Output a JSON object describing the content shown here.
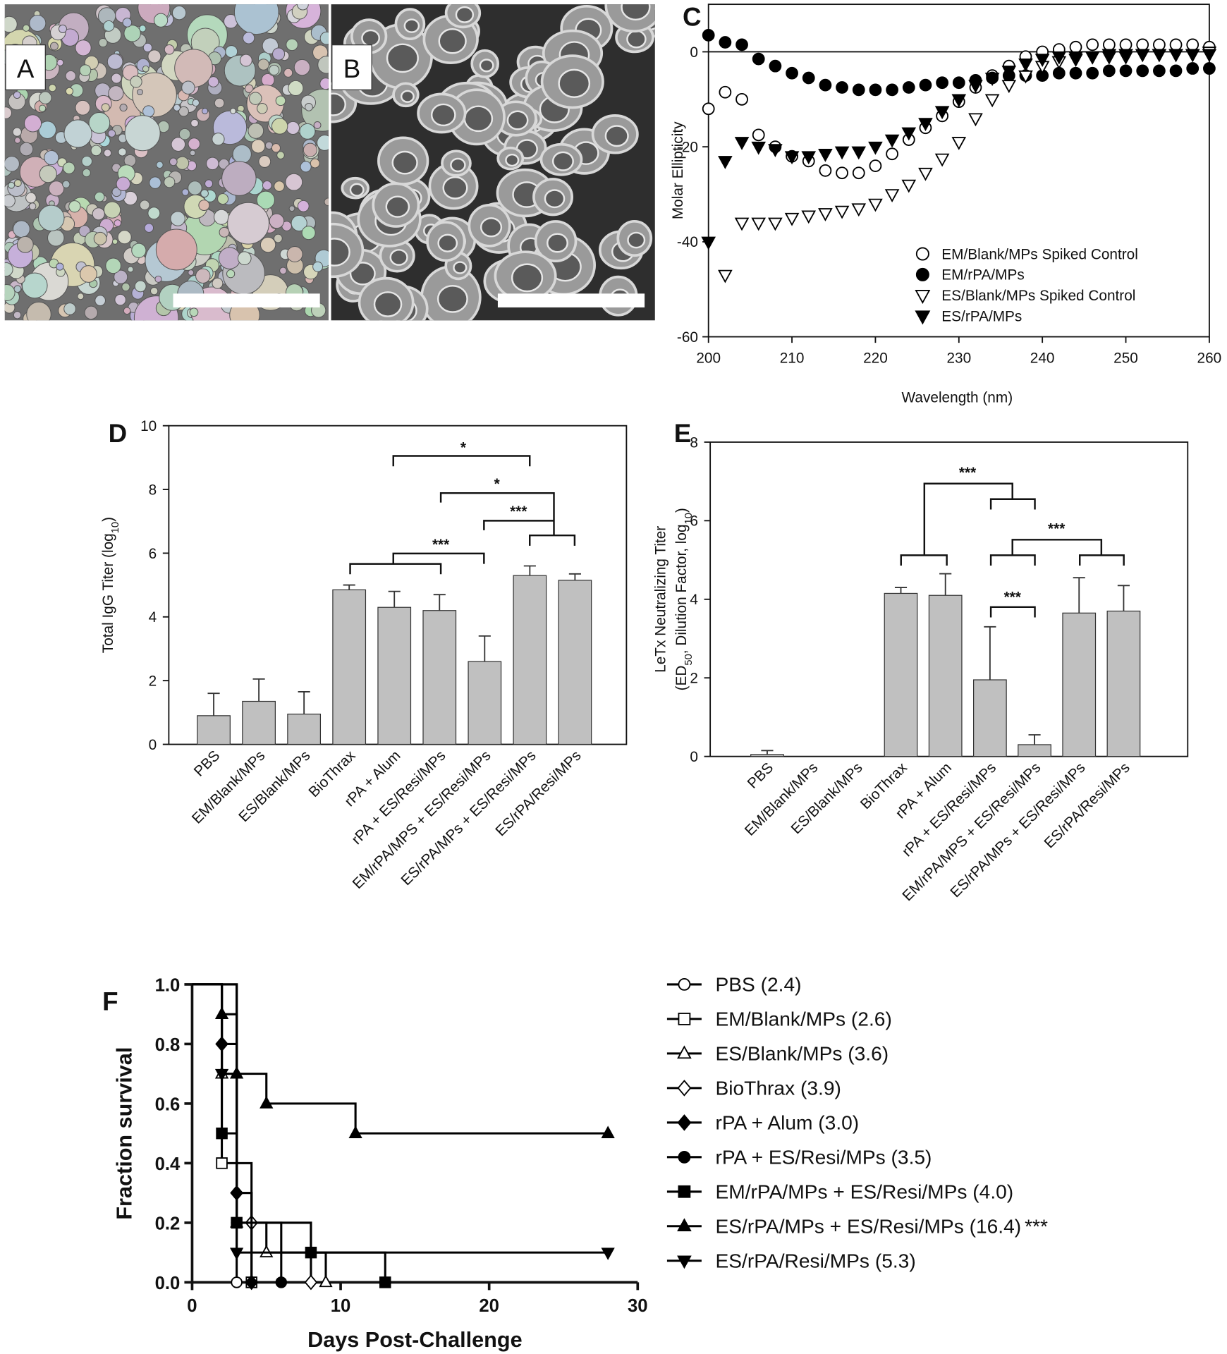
{
  "images": [
    {
      "label": "A"
    },
    {
      "label": "B"
    }
  ],
  "chart_data": [
    {
      "label": "C",
      "type": "scatter",
      "xlabel": "Wavelength (nm)",
      "ylabel": "Molar Ellipticity",
      "x": [
        200,
        202,
        204,
        206,
        208,
        210,
        212,
        214,
        216,
        218,
        220,
        222,
        224,
        226,
        228,
        230,
        232,
        234,
        236,
        238,
        240,
        242,
        244,
        246,
        248,
        250,
        252,
        254,
        256,
        258,
        260
      ],
      "xlim": [
        200,
        260
      ],
      "xticks": [
        200,
        210,
        220,
        230,
        240,
        250,
        260
      ],
      "ylim": [
        -60,
        10
      ],
      "yticks": [
        -60,
        -40,
        -20,
        0
      ],
      "zero_line": true,
      "series": [
        {
          "name": "EM/Blank/MPs Spiked Control",
          "color": "#000000",
          "marker": "circle-open",
          "values": [
            -12,
            -8.5,
            -10,
            -17.5,
            -20,
            -22,
            -23,
            -25,
            -25.5,
            -25.5,
            -24,
            -21.5,
            -18.5,
            -16,
            -13.5,
            -10.5,
            -7.5,
            -5,
            -3,
            -1,
            0,
            0.5,
            1,
            1.5,
            1.5,
            1.5,
            1.5,
            1.5,
            1.5,
            1.5,
            1
          ]
        },
        {
          "name": "EM/rPA/MPs",
          "color": "#000000",
          "marker": "circle-filled",
          "values": [
            3.5,
            2,
            1.5,
            -1.5,
            -3,
            -4.5,
            -5.5,
            -7,
            -7.5,
            -8,
            -8,
            -8,
            -7.5,
            -7,
            -6.5,
            -6.5,
            -6,
            -5.5,
            -5,
            -5,
            -5,
            -4.5,
            -4.5,
            -4.5,
            -4,
            -4,
            -4,
            -4,
            -4,
            -3.5,
            -3.5
          ]
        },
        {
          "name": "ES/Blank/MPs Spiked Control",
          "color": "#000000",
          "marker": "triangle-down-open",
          "values": [
            null,
            -47,
            -36,
            -36,
            -36,
            -35,
            -34.5,
            -34,
            -33.5,
            -33,
            -32,
            -30,
            -28,
            -25.5,
            -22.5,
            -19,
            -14,
            -10,
            -7,
            -5,
            -3,
            -2,
            -1.5,
            -1,
            -1,
            -1,
            -0.5,
            -0.5,
            -0.5,
            -0.5,
            0
          ]
        },
        {
          "name": "ES/rPA/MPs",
          "color": "#000000",
          "marker": "triangle-down-filled",
          "values": [
            -40,
            -23,
            -19,
            -20,
            -20.5,
            -22,
            -22,
            -21.5,
            -21,
            -21,
            -20,
            -18.5,
            -17,
            -15,
            -12.5,
            -10,
            -7,
            -5.5,
            -4,
            -2.5,
            -1.5,
            -1,
            -1,
            -1,
            -0.5,
            -0.5,
            -0.5,
            -0.5,
            -0.5,
            -0.5,
            -0.5
          ]
        }
      ]
    },
    {
      "label": "D",
      "type": "bar",
      "ylabel": [
        [
          "Total IgG Titer (log",
          "10",
          ")"
        ]
      ],
      "categories": [
        "PBS",
        "EM/Blank/MPs",
        "ES/Blank/MPs",
        "BioThrax",
        "rPA + Alum",
        "rPA + ES/Resi/MPs",
        "EM/rPA/MPS + ES/Resi/MPs",
        "ES/rPA/MPs + ES/Resi/MPs",
        "ES/rPA/Resi/MPs"
      ],
      "values": [
        0.9,
        1.35,
        0.95,
        4.85,
        4.3,
        4.2,
        2.6,
        5.3,
        5.15
      ],
      "errors": [
        0.7,
        0.7,
        0.7,
        0.15,
        0.5,
        0.5,
        0.8,
        0.3,
        0.2
      ],
      "color": "#c0c0c0",
      "ylim": [
        0,
        10
      ],
      "yticks": [
        0,
        2,
        4,
        6,
        8,
        10
      ],
      "annotations": [
        "*",
        "*",
        "***",
        "***"
      ]
    },
    {
      "label": "E",
      "type": "bar",
      "ylabel": [
        [
          "LeTx Neutralizing Titer"
        ],
        [
          "(ED",
          "50",
          ", Dilution Factor, log",
          "10",
          ")"
        ]
      ],
      "categories": [
        "PBS",
        "EM/Blank/MPs",
        "ES/Blank/MPs",
        "BioThrax",
        "rPA + Alum",
        "rPA + ES/Resi/MPs",
        "EM/rPA/MPS + ES/Resi/MPs",
        "ES/rPA/MPs + ES/Resi/MPs",
        "ES/rPA/Resi/MPs"
      ],
      "values": [
        0.05,
        0,
        0,
        4.15,
        4.1,
        1.95,
        0.3,
        3.65,
        3.7
      ],
      "errors": [
        0.1,
        0,
        0,
        0.15,
        0.55,
        1.35,
        0.25,
        0.9,
        0.65
      ],
      "color": "#c0c0c0",
      "ylim": [
        0,
        8
      ],
      "yticks": [
        0,
        2,
        4,
        6,
        8
      ],
      "annotations": [
        "***",
        "***",
        "***"
      ]
    },
    {
      "label": "F",
      "type": "step",
      "xlabel": "Days Post-Challenge",
      "ylabel": "Fraction survival",
      "xlim": [
        0,
        30
      ],
      "xticks": [
        0,
        10,
        20,
        30
      ],
      "ylim": [
        0,
        1
      ],
      "yticks": [
        {
          "value": 0,
          "label": "0.0"
        },
        {
          "value": 0.2,
          "label": "0.2"
        },
        {
          "value": 0.4,
          "label": "0.4"
        },
        {
          "value": 0.6,
          "label": "0.6"
        },
        {
          "value": 0.8,
          "label": "0.8"
        },
        {
          "value": 1,
          "label": "1.0"
        }
      ],
      "series": [
        {
          "name": "PBS (2.4)",
          "color": "#000000",
          "marker": "circle-open",
          "x": [
            0,
            3
          ],
          "values": [
            1,
            0
          ]
        },
        {
          "name": "EM/Blank/MPs (2.6)",
          "color": "#000000",
          "marker": "square-open",
          "x": [
            0,
            2,
            4
          ],
          "values": [
            1,
            0.4,
            0
          ]
        },
        {
          "name": "ES/Blank/MPs (3.6)",
          "color": "#000000",
          "marker": "triangle-up-open",
          "x": [
            0,
            2,
            3,
            5,
            9
          ],
          "values": [
            1,
            0.7,
            0.2,
            0.1,
            0
          ]
        },
        {
          "name": "BioThrax (3.9)",
          "color": "#000000",
          "marker": "diamond-open",
          "x": [
            0,
            3,
            4,
            8
          ],
          "values": [
            1,
            0.3,
            0.2,
            0
          ]
        },
        {
          "name": "rPA + Alum (3.0)",
          "color": "#000000",
          "marker": "diamond-filled",
          "x": [
            0,
            2,
            3,
            4
          ],
          "values": [
            1,
            0.8,
            0.3,
            0
          ]
        },
        {
          "name": "rPA + ES/Resi/MPs (3.5)",
          "color": "#000000",
          "marker": "circle-filled",
          "x": [
            0,
            3,
            6
          ],
          "values": [
            1,
            0.2,
            0
          ]
        },
        {
          "name": "EM/rPA/MPs + ES/Resi/MPs (4.0)",
          "color": "#000000",
          "marker": "square-filled",
          "x": [
            0,
            2,
            3,
            8,
            13
          ],
          "values": [
            1,
            0.5,
            0.2,
            0.1,
            0
          ]
        },
        {
          "name": "ES/rPA/MPs + ES/Resi/MPs (16.4)",
          "significance": "***",
          "color": "#000000",
          "marker": "triangle-up-filled",
          "x": [
            0,
            2,
            3,
            5,
            11,
            28
          ],
          "values": [
            1,
            0.9,
            0.7,
            0.6,
            0.5,
            0.5
          ]
        },
        {
          "name": "ES/rPA/Resi/MPs (5.3)",
          "color": "#000000",
          "marker": "triangle-down-filled",
          "x": [
            0,
            2,
            3,
            28
          ],
          "values": [
            1,
            0.7,
            0.1,
            0.1
          ]
        }
      ]
    }
  ]
}
